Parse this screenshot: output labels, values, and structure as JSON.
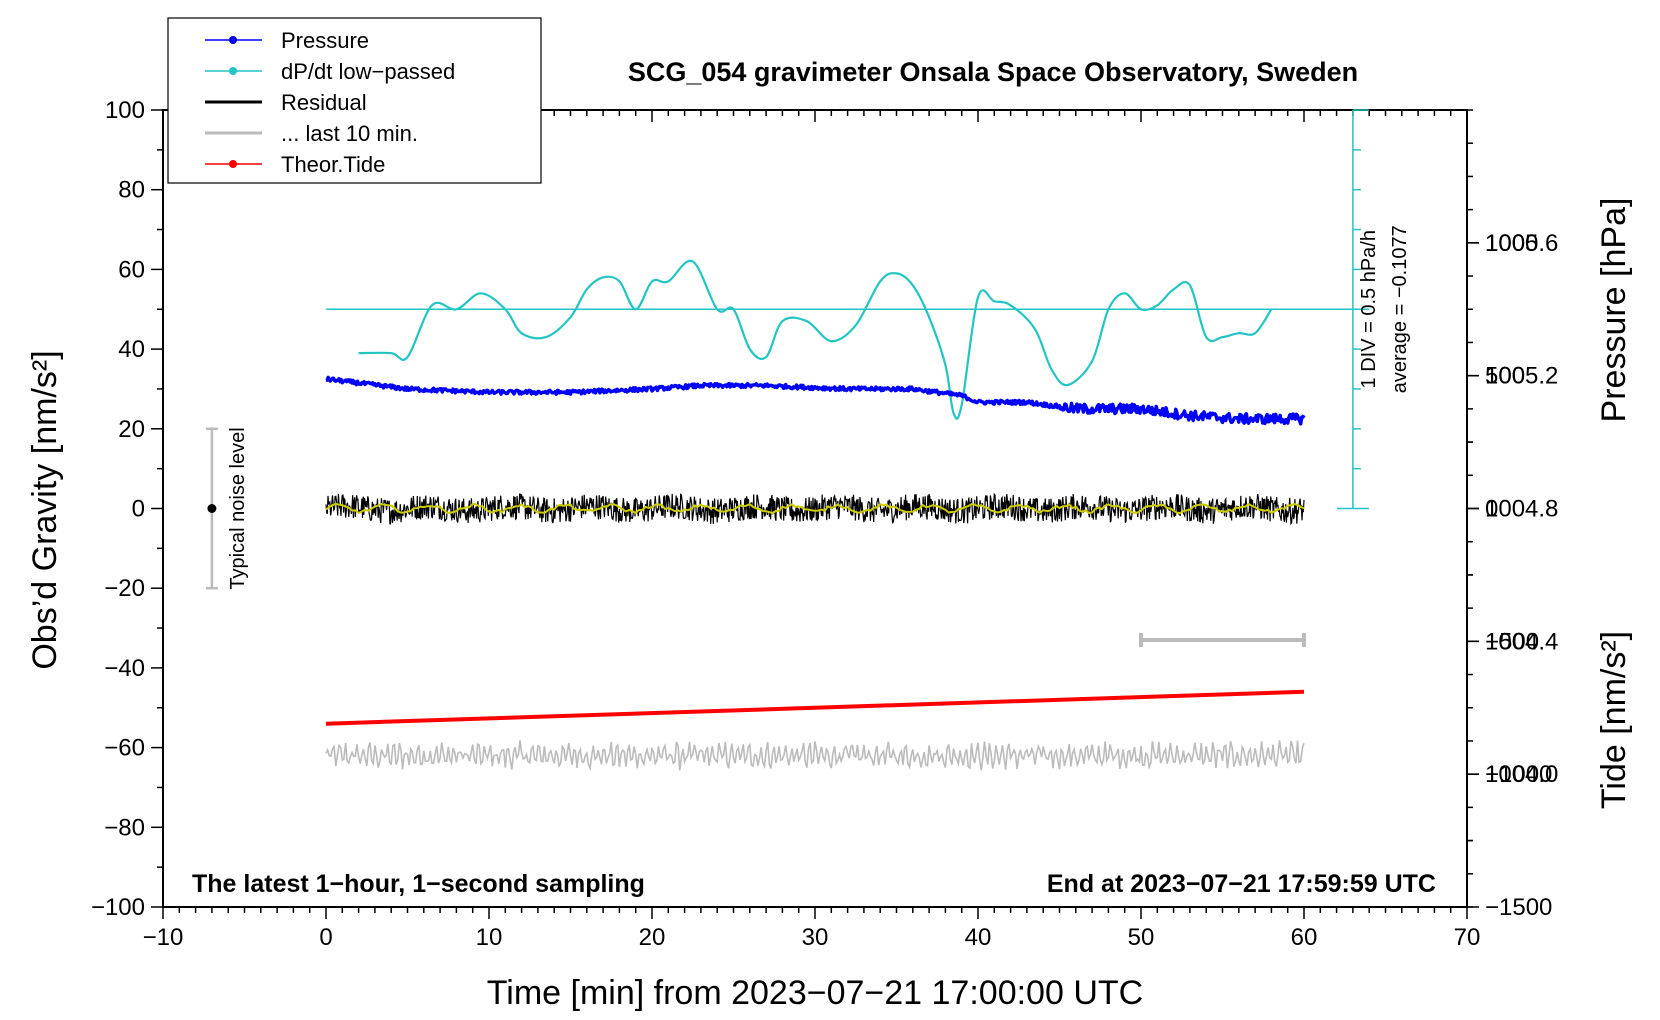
{
  "chart_data": {
    "type": "line",
    "title": "SCG_054 gravimeter Onsala Space Observatory, Sweden",
    "xlabel": "Time [min] from 2023−07−21 17:00:00 UTC",
    "ylabel_left": "Obs’d Gravity [nm/s²]",
    "ylabel_right_top": "Pressure [hPa]",
    "ylabel_right_bottom": "Tide [nm/s²]",
    "xlim": [
      -10,
      70
    ],
    "ylim": [
      -100,
      100
    ],
    "x_ticks": [
      -10,
      0,
      10,
      20,
      30,
      40,
      50,
      60,
      70
    ],
    "x_tick_labels": [
      "−10",
      "0",
      "10",
      "20",
      "30",
      "40",
      "50",
      "60",
      "70"
    ],
    "y_ticks": [
      -100,
      -80,
      -60,
      -40,
      -20,
      0,
      20,
      40,
      60,
      80,
      100
    ],
    "y_tick_labels": [
      "−100",
      "−80",
      "−60",
      "−40",
      "−20",
      "0",
      "20",
      "40",
      "60",
      "80",
      "100"
    ],
    "pressure_axis": {
      "range": [
        1003.6,
        1006.0
      ],
      "ticks": [
        1004.0,
        1004.4,
        1004.8,
        1005.2,
        1005.6
      ],
      "tick_labels": [
        "1004.0",
        "1004.4",
        "1004.8",
        "1005.2",
        "1005.6"
      ]
    },
    "tide_axis": {
      "range": [
        -1500,
        1500
      ],
      "ticks": [
        -1500,
        -1000,
        -500,
        0,
        500,
        1000
      ],
      "tick_labels": [
        "−1500",
        "−1000",
        "−500",
        "0",
        "500",
        "1000"
      ]
    },
    "legend": [
      {
        "label": "Pressure",
        "color": "#0000ff",
        "marker": true
      },
      {
        "label": "dP/dt low−passed",
        "color": "#22c4c4",
        "marker": true
      },
      {
        "label": "Residual",
        "color": "#000000",
        "marker": false
      },
      {
        "label": "... last 10 min.",
        "color": "#bbbbbb",
        "marker": false
      },
      {
        "label": "Theor.Tide",
        "color": "#ff0000",
        "marker": true
      }
    ],
    "series": [
      {
        "name": "Pressure",
        "units": "hPa",
        "color": "#0000ff",
        "x": [
          0,
          5,
          10,
          15,
          20,
          23,
          27,
          32,
          36,
          39,
          40,
          43,
          46,
          50,
          53,
          56,
          60
        ],
        "values": [
          1005.19,
          1005.16,
          1005.15,
          1005.15,
          1005.16,
          1005.17,
          1005.17,
          1005.16,
          1005.16,
          1005.14,
          1005.12,
          1005.12,
          1005.1,
          1005.1,
          1005.08,
          1005.07,
          1005.07
        ]
      },
      {
        "name": "dP/dt low−passed",
        "units": "nm/s² plot scale (1 DIV = 0.5 hPa/h)",
        "color": "#22c4c4",
        "x": [
          2,
          4,
          5,
          6.5,
          8,
          9.5,
          11,
          12,
          13.5,
          15,
          16,
          17,
          18,
          19,
          20,
          21,
          22.5,
          24,
          25,
          26,
          27,
          28,
          29.5,
          31,
          32.5,
          34,
          35,
          36,
          37,
          38,
          38.5,
          39,
          40,
          41,
          42,
          43.5,
          44.5,
          45.5,
          47,
          48,
          49,
          50,
          51,
          52,
          53,
          54,
          55,
          56,
          57,
          58
        ],
        "values": [
          39,
          39,
          38,
          51,
          50,
          54,
          50,
          44,
          43,
          48,
          55,
          58,
          57,
          50,
          57,
          57,
          62,
          50,
          50,
          40,
          38,
          47,
          47,
          42,
          46,
          57,
          59,
          56,
          48,
          36,
          24,
          26,
          53,
          52,
          51,
          45,
          35,
          31,
          37,
          50,
          54,
          50,
          51,
          55,
          56,
          43,
          43,
          44,
          44,
          50
        ]
      },
      {
        "name": "dP/dt average line",
        "color": "#22c4c4",
        "x": [
          0,
          64
        ],
        "values": [
          50,
          50
        ]
      },
      {
        "name": "Residual",
        "color": "#000000",
        "x_range": [
          0,
          60
        ],
        "center": 0,
        "amplitude": 3
      },
      {
        "name": "Residual smoothed",
        "color": "#cccc00",
        "x_range": [
          0,
          60
        ],
        "center": 0,
        "amplitude": 1
      },
      {
        "name": "... last 10 min.",
        "color": "#bbbbbb",
        "x_range": [
          0,
          60
        ],
        "center": -62,
        "amplitude": 3
      },
      {
        "name": "Theor.Tide",
        "units": "nm/s²",
        "color": "#ff0000",
        "x": [
          0,
          60
        ],
        "values": [
          -54,
          -46
        ]
      }
    ],
    "annotations": {
      "noise_label": "Typical noise level",
      "noise_bar": {
        "x": -7,
        "y_center": 0,
        "half_range": 20
      },
      "div_label": "1 DIV = 0.5 hPa/h",
      "average_label": "average = −0.1077",
      "gray_bar": {
        "x_from": 50,
        "x_to": 60,
        "y": -33
      },
      "left_note": "The latest 1−hour, 1−second sampling",
      "right_note": "End at 2023−07−21 17:59:59 UTC"
    }
  }
}
